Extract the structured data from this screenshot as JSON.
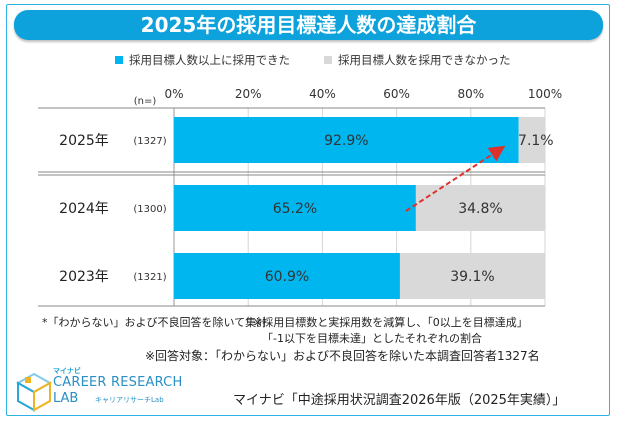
{
  "title": "2025年の採用目標達人数の達成割合",
  "chart_data": {
    "type": "bar",
    "orientation": "horizontal",
    "stacked": true,
    "categories": [
      "2025年",
      "2024年",
      "2023年"
    ],
    "n_values": [
      "(1327)",
      "(1300)",
      "(1321)"
    ],
    "n_header": "(n=)",
    "series": [
      {
        "name": "採用目標人数以上に採用できた",
        "values": [
          92.9,
          65.2,
          60.9
        ],
        "labels": [
          "92.9%",
          "65.2%",
          "60.9%"
        ],
        "color": "#00b6ef"
      },
      {
        "name": "採用目標人数を採用できなかった",
        "values": [
          7.1,
          34.8,
          39.1
        ],
        "labels": [
          "7.1%",
          "34.8%",
          "39.1%"
        ],
        "color": "#d9d9d9"
      }
    ],
    "x_ticks": [
      "0%",
      "20%",
      "40%",
      "60%",
      "80%",
      "100%"
    ],
    "xlim": [
      0,
      100
    ],
    "grid": true,
    "legend_position": "top",
    "annotation": "red dashed arrow from 2024 bar to 2025 bar"
  },
  "notes": {
    "left": "*「わからない」および不良回答を除いて集計",
    "right_1": "※採用目標数と実採用数を減算し、「0以上を目標達成」",
    "right_2": "「-1以下を目標未達」としたそれぞれの割合",
    "bottom": "※回答対象：「わからない」および不良回答を除いた本調査回答者1327名"
  },
  "logo": {
    "small": "マイナビ",
    "main": "CAREER RESEARCH",
    "sub": "LAB",
    "tag": "キャリアリサーチLab"
  },
  "source": "マイナビ「中途採用状況調査2026年版（2025年実績）」",
  "colors": {
    "accent": "#0da2dc",
    "bar_primary": "#00b6ef",
    "bar_secondary": "#d9d9d9",
    "arrow": "#e0302a"
  }
}
